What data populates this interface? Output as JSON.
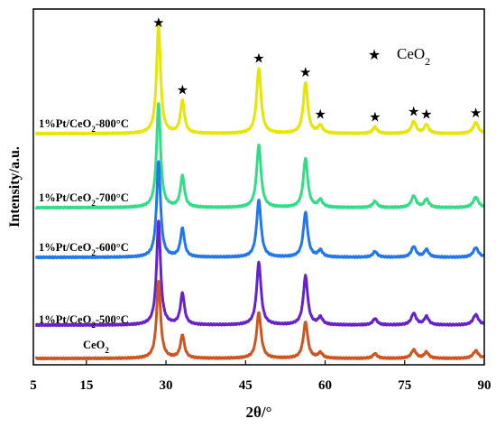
{
  "chart_data": {
    "type": "line",
    "xlabel": "2θ/°",
    "ylabel": "Intensity/a.u.",
    "xlim": [
      5,
      90
    ],
    "xticks": [
      "5",
      "15",
      "30",
      "45",
      "60",
      "75",
      "90"
    ],
    "xtick_values": [
      5,
      15,
      30,
      45,
      60,
      75,
      90
    ],
    "legend": {
      "marker": "★",
      "label": "CeO",
      "label_sub": "2"
    },
    "peaks": [
      {
        "two_theta": 28.6,
        "rel": 1.0,
        "width": 0.45
      },
      {
        "two_theta": 33.1,
        "rel": 0.3,
        "width": 0.45
      },
      {
        "two_theta": 47.5,
        "rel": 0.6,
        "width": 0.5
      },
      {
        "two_theta": 56.3,
        "rel": 0.47,
        "width": 0.5
      },
      {
        "two_theta": 59.1,
        "rel": 0.07,
        "width": 0.5
      },
      {
        "two_theta": 69.4,
        "rel": 0.06,
        "width": 0.5
      },
      {
        "two_theta": 76.7,
        "rel": 0.11,
        "width": 0.55
      },
      {
        "two_theta": 79.1,
        "rel": 0.08,
        "width": 0.5
      },
      {
        "two_theta": 88.4,
        "rel": 0.1,
        "width": 0.6
      }
    ],
    "star_positions": [
      28.6,
      33.1,
      47.5,
      56.3,
      59.1,
      69.4,
      76.7,
      79.1,
      88.4
    ],
    "series": [
      {
        "name": "1%Pt/CeO",
        "name_sub": "2",
        "name_tail": "-800°C",
        "color": "#e6e600",
        "scale": 120
      },
      {
        "name": "1%Pt/CeO",
        "name_sub": "2",
        "name_tail": "-700°C",
        "color": "#33dd88",
        "scale": 115
      },
      {
        "name": "1%Pt/CeO",
        "name_sub": "2",
        "name_tail": "-600°C",
        "color": "#2277ee",
        "scale": 105
      },
      {
        "name": "1%Pt/CeO",
        "name_sub": "2",
        "name_tail": "-500°C",
        "color": "#6622cc",
        "scale": 115
      },
      {
        "name": "CeO",
        "name_sub": "2",
        "name_tail": "",
        "color": "#cc5522",
        "scale": 85
      }
    ]
  }
}
